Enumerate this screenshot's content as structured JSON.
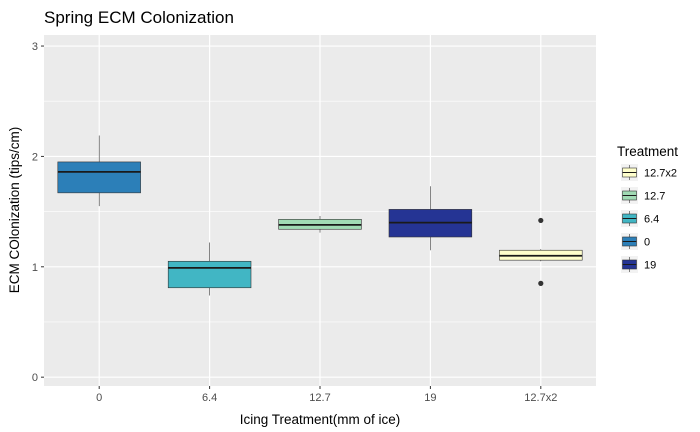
{
  "chart_data": {
    "type": "box",
    "title": "Spring ECM Colonization",
    "xlabel": "Icing Treatment(mm of ice)",
    "ylabel": "ECM COlonization (tips/cm)",
    "ylim": [
      -0.08,
      3.1
    ],
    "y_ticks": [
      0,
      1,
      2,
      3
    ],
    "categories": [
      "0",
      "6.4",
      "12.7",
      "19",
      "12.7x2"
    ],
    "boxes": [
      {
        "category": "0",
        "treatment": "0",
        "whisker_low": 1.55,
        "q1": 1.67,
        "median": 1.86,
        "q3": 1.95,
        "whisker_high": 2.19,
        "outliers": []
      },
      {
        "category": "6.4",
        "treatment": "6.4",
        "whisker_low": 0.74,
        "q1": 0.81,
        "median": 0.99,
        "q3": 1.05,
        "whisker_high": 1.22,
        "outliers": []
      },
      {
        "category": "12.7",
        "treatment": "12.7",
        "whisker_low": 1.31,
        "q1": 1.34,
        "median": 1.38,
        "q3": 1.43,
        "whisker_high": 1.46,
        "outliers": []
      },
      {
        "category": "19",
        "treatment": "19",
        "whisker_low": 1.15,
        "q1": 1.27,
        "median": 1.4,
        "q3": 1.52,
        "whisker_high": 1.73,
        "outliers": []
      },
      {
        "category": "12.7x2",
        "treatment": "12.7x2",
        "whisker_low": 1.05,
        "q1": 1.06,
        "median": 1.1,
        "q3": 1.15,
        "whisker_high": 1.16,
        "outliers": [
          0.85,
          1.42
        ]
      }
    ],
    "grid": true,
    "legend": {
      "title": "Treatment",
      "position": "right",
      "items": [
        {
          "label": "12.7x2",
          "color": "#ffffcc"
        },
        {
          "label": "12.7",
          "color": "#a1dab4"
        },
        {
          "label": "6.4",
          "color": "#41b6c4"
        },
        {
          "label": "0",
          "color": "#2c7fb8"
        },
        {
          "label": "19",
          "color": "#253494"
        }
      ]
    },
    "colors": {
      "0": "#2c7fb8",
      "6.4": "#41b6c4",
      "12.7": "#a1dab4",
      "19": "#253494",
      "12.7x2": "#ffffcc",
      "panel_background": "#ebebeb",
      "grid": "#ffffff"
    }
  }
}
